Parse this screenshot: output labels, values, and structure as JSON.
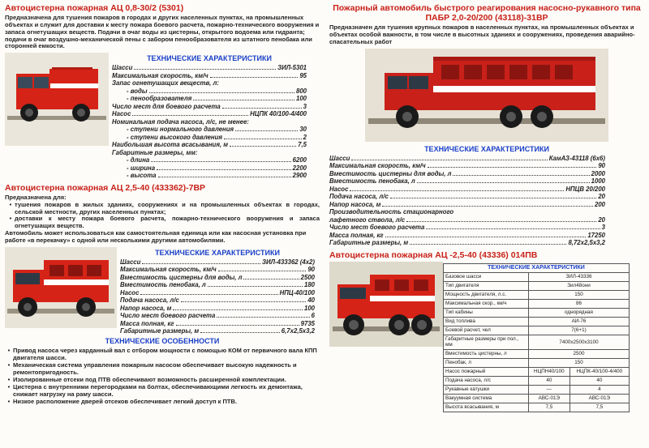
{
  "colors": {
    "red": "#c8211a",
    "blue": "#1a3fc8",
    "truck_red": "#d62317",
    "truck_dark": "#2a2a2a",
    "bg": "#fdfcf8"
  },
  "v1": {
    "title": "Автоцистерна пожарная АЦ 0,8-30/2 (5301)",
    "desc": "Предназначена для тушения пожаров в городах и других населенных пунктах, на промышленных объектах и служит для доставки к месту пожара боевого расчета, пожарно-технического вооружения и запаса огнетушащих веществ. Подачи в очаг воды из цистерны, открытого водоема или гидранта; подачи в очаг воздушно-механической пены с забором пенообразователя из штатного пенобака или сторонней емкости.",
    "subhead": "ТЕХНИЧЕСКИЕ ХАРАКТЕРИСТИКИ",
    "specs": [
      {
        "l": "Шасси",
        "v": "ЗИЛ-5301"
      },
      {
        "l": "Максимальная скорость, км/ч",
        "v": "95"
      },
      {
        "l": "Запас огнетушащих веществ, л:",
        "v": ""
      },
      {
        "l": "- воды",
        "v": "800",
        "i": 1
      },
      {
        "l": "- пенообразователя",
        "v": "100",
        "i": 1
      },
      {
        "l": "Число мест для боевого расчета",
        "v": "3"
      },
      {
        "l": "Насос",
        "v": "НЦПК 40/100-4/400"
      },
      {
        "l": "Номинальная подача насоса, л/с, не менее:",
        "v": ""
      },
      {
        "l": "- ступени нормального давления",
        "v": "30",
        "i": 1
      },
      {
        "l": "- ступени высокого давления",
        "v": "2",
        "i": 1
      },
      {
        "l": "Наибольшая высота всасывания, м",
        "v": "7,5"
      },
      {
        "l": "Габаритные размеры, мм:",
        "v": ""
      },
      {
        "l": "- длина",
        "v": "6200",
        "i": 1
      },
      {
        "l": "- ширина",
        "v": "2200",
        "i": 1
      },
      {
        "l": "- высота",
        "v": "2900",
        "i": 1
      }
    ]
  },
  "v2": {
    "title": "Автоцистерна пожарная АЦ 2,5-40 (433362)-7ВР",
    "desc_lead": "Предназначена для:",
    "desc_items": [
      "тушения пожаров в жилых зданиях, сооружениях и на промышленных объектах в городах, сельской местности, других населенных пунктах;",
      "доставки к месту пожара боевого расчета, пожарно-технического вооружения и запаса огнетушащих веществ."
    ],
    "desc_tail": "Автомобиль может использоваться как самостоятельная единица или как насосная установка при работе «в перекачку» с одной или несколькими другими автомобилями.",
    "subhead": "ТЕХНИЧЕСКИЕ ХАРАКТЕРИСТИКИ",
    "specs": [
      {
        "l": "Шасси",
        "v": "ЗИЛ-433362 (4х2)"
      },
      {
        "l": "Максимальная скорость, км/ч",
        "v": "90"
      },
      {
        "l": "Вместимость цистерны для воды, л",
        "v": "2500"
      },
      {
        "l": "Вместимость пенобака, л",
        "v": "180"
      },
      {
        "l": "Насос",
        "v": "НПЦ-40/100"
      },
      {
        "l": "Подача насоса, л/с",
        "v": "40"
      },
      {
        "l": "Напор насоса, м",
        "v": "100"
      },
      {
        "l": "Число мест боевого расчета",
        "v": "6"
      },
      {
        "l": "Масса полная, кг",
        "v": "9735"
      },
      {
        "l": "Габаритные размеры, м",
        "v": "6,7х2,5х3,2"
      }
    ],
    "feat_head": "ТЕХНИЧЕСКИЕ ОСОБЕННОСТИ",
    "features": [
      "Привод насоса через карданный вал с отбором мощности с помощью КОМ от первичного вала КПП двигателя шасси.",
      "Механическая система управления пожарным насосом обеспечивает высокую надежность и ремонтопригодность.",
      "Изолированные отсеки под ПТВ обеспечивают возможность расширенной комплектации.",
      "Цистерна с внутренними перегородками на болтах, обеспечивающими легкость их демонтажа, снижает нагрузку на раму шасси.",
      "Низкое расположение дверей отсеков обеспечивает легкий доступ к ПТВ."
    ]
  },
  "v3": {
    "title": "Пожарный автомобиль быстрого реагирования насосно-рукавного типа ПАБР 2,0-20/200 (43118)-31ВР",
    "desc": "Предназначен для тушения крупных пожаров в населенных пунктах, на промышленных объектах и объектах особой важности, в том числе в высотных зданиях и сооружениях, проведения аварийно-спасательных работ",
    "subhead": "ТЕХНИЧЕСКИЕ ХАРАКТЕРИСТИКИ",
    "specs": [
      {
        "l": "Шасси",
        "v": "КамАЗ-43118 (6х6)"
      },
      {
        "l": "Максимальная скорость, км/ч",
        "v": "90"
      },
      {
        "l": "Вместимость цистерны для воды, л",
        "v": "2000"
      },
      {
        "l": "Вместимость пенобака, л",
        "v": "1000"
      },
      {
        "l": "Насос",
        "v": "НПЦВ 20/200"
      },
      {
        "l": "Подача насоса, л/с",
        "v": "20"
      },
      {
        "l": "Напор насоса, м",
        "v": "200"
      },
      {
        "l": "Производительность стационарного",
        "v": ""
      },
      {
        "l": "лафетного ствола, л/с",
        "v": "20"
      },
      {
        "l": "Число мест боевого расчета",
        "v": "3"
      },
      {
        "l": "Масса полная, кг",
        "v": "17250"
      },
      {
        "l": "Габаритные размеры, м",
        "v": "8,72х2,5х3,2"
      }
    ]
  },
  "v4": {
    "title": "Автоцистерна пожарная АЦ -2,5-40 (43336) 014ПВ",
    "thead": "ТЕХНИЧЕСКИЕ ХАРАКТЕРИСТИКИ",
    "rows": [
      [
        "Базовое шасси",
        "ЗИЛ-43336"
      ],
      [
        "Тип двигателя",
        "Зил48они"
      ],
      [
        "Мощность двигателя, л.с.",
        "150"
      ],
      [
        "Максимальная скор., км/ч",
        "86"
      ],
      [
        "Тип кабины",
        "однорядная"
      ],
      [
        "Вид топлива",
        "АИ-76"
      ],
      [
        "Боевой расчет, чел",
        "7(6+1)"
      ],
      [
        "Габаритные размеры при пол., мм",
        "7400х2500х3100"
      ],
      [
        "Вместимость цистерны, л",
        "2500"
      ],
      [
        "Пенобак, л",
        "150"
      ]
    ],
    "rows2": [
      [
        "Насос пожарный",
        "НЦПН40/100",
        "НЦПК-40/100-4/400"
      ],
      [
        "Подача насоса, л/с",
        "40",
        "40"
      ],
      [
        "Рукавные катушки",
        "—",
        "4"
      ],
      [
        "Вакуумная система",
        "АВС-01Э",
        "АВС-01Э"
      ],
      [
        "Высота всасывания, м",
        "7,5",
        "7,5"
      ]
    ]
  }
}
